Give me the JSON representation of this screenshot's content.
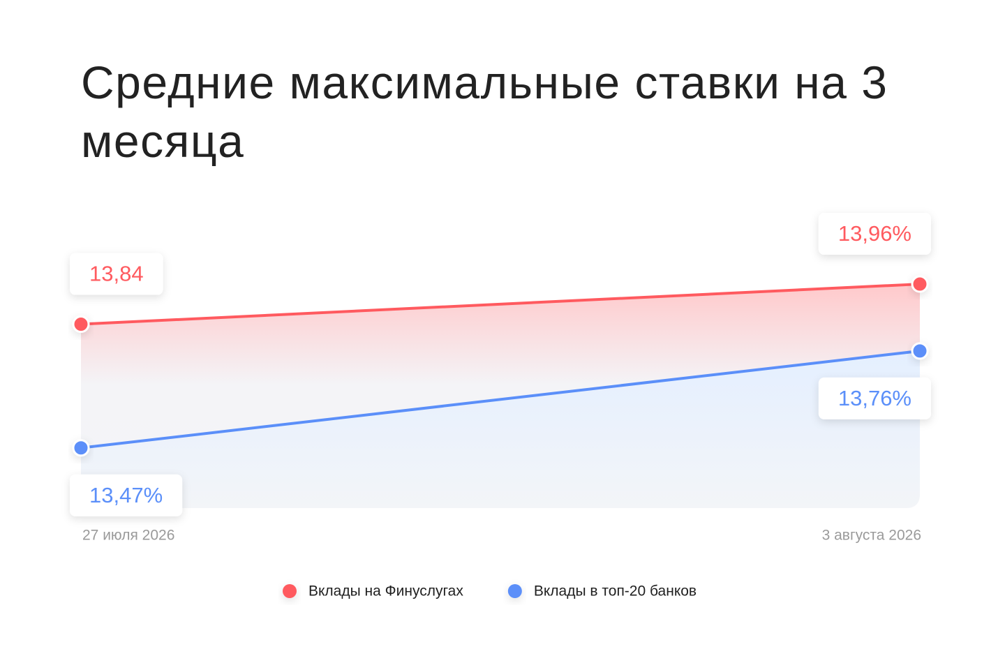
{
  "chart_data": {
    "type": "line",
    "title": "Средние максимальные ставки на 3 месяца",
    "categories": [
      "27 июля 2026",
      "3 августа 2026"
    ],
    "series": [
      {
        "name": "Вклады на Финуслугах",
        "color": "#ff5a5f",
        "values": [
          13.84,
          13.96
        ],
        "value_labels": [
          "13,84",
          "13,96%"
        ]
      },
      {
        "name": "Вклады в топ-20 банков",
        "color": "#5b8ff9",
        "values": [
          13.47,
          13.76
        ],
        "value_labels": [
          "13,47%",
          "13,76%"
        ]
      }
    ],
    "ylim": [
      13.29,
      14.1
    ]
  }
}
